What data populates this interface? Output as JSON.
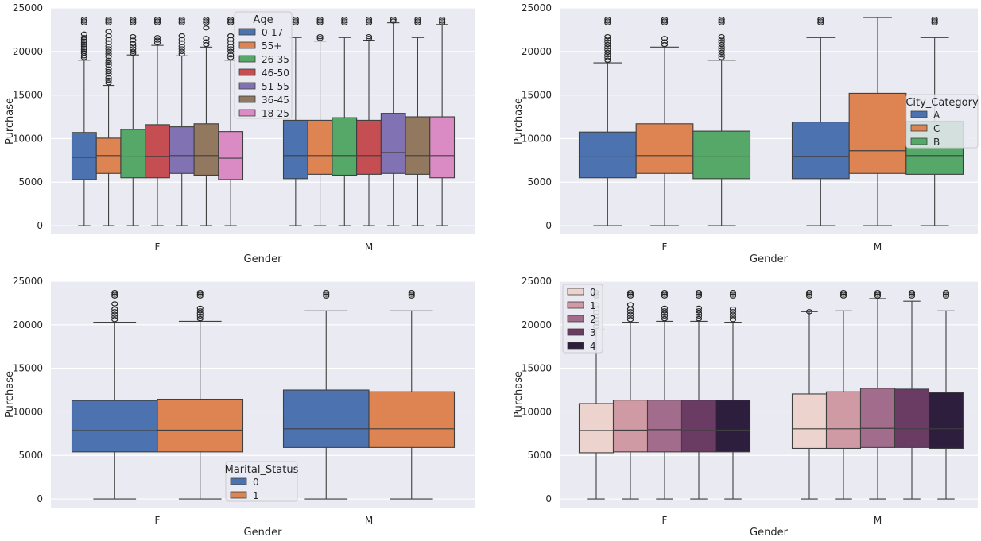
{
  "chart_data": [
    {
      "type": "boxplot",
      "xlabel": "Gender",
      "ylabel": "Purchase",
      "categories": [
        "F",
        "M"
      ],
      "ylim": [
        -1000,
        25000
      ],
      "yticks": [
        0,
        5000,
        10000,
        15000,
        20000,
        25000
      ],
      "legend": {
        "title": "Age",
        "position": "upper-center"
      },
      "series": [
        {
          "name": "0-17",
          "color": "#4c72b0",
          "boxes": [
            {
              "q1": 5300,
              "median": 7850,
              "q3": 10700,
              "whislo": 0,
              "whishi": 19000,
              "fliers": [
                19300,
                19500,
                19800,
                20000,
                20200,
                20400,
                20600,
                20800,
                21000,
                21200,
                21400,
                21600,
                22000,
                23300,
                23500,
                23700
              ]
            },
            {
              "q1": 5400,
              "median": 8050,
              "q3": 12100,
              "whislo": 0,
              "whishi": 21600,
              "fliers": [
                23300,
                23500,
                23700
              ]
            }
          ]
        },
        {
          "name": "55+",
          "color": "#dd8452",
          "boxes": [
            {
              "q1": 6000,
              "median": 8050,
              "q3": 10050,
              "whislo": 0,
              "whishi": 16100,
              "fliers": [
                16400,
                16700,
                17000,
                17400,
                17700,
                18000,
                18400,
                18700,
                19000,
                19400,
                19700,
                20000,
                20300,
                20600,
                21000,
                21400,
                21800,
                22300,
                23300,
                23500,
                23700
              ]
            },
            {
              "q1": 5900,
              "median": 8050,
              "q3": 12100,
              "whislo": 0,
              "whishi": 21200,
              "fliers": [
                21500,
                21700,
                23300,
                23500,
                23700
              ]
            }
          ]
        },
        {
          "name": "26-35",
          "color": "#55a868",
          "boxes": [
            {
              "q1": 5500,
              "median": 7900,
              "q3": 11050,
              "whislo": 0,
              "whishi": 19600,
              "fliers": [
                19800,
                20000,
                20300,
                20600,
                20900,
                21300,
                21700,
                23300,
                23500,
                23700
              ]
            },
            {
              "q1": 5800,
              "median": 8050,
              "q3": 12400,
              "whislo": 0,
              "whishi": 21600,
              "fliers": [
                23300,
                23500,
                23700
              ]
            }
          ]
        },
        {
          "name": "46-50",
          "color": "#c44e52",
          "boxes": [
            {
              "q1": 5500,
              "median": 7950,
              "q3": 11600,
              "whislo": 0,
              "whishi": 20700,
              "fliers": [
                21000,
                21300,
                21600,
                23300,
                23500,
                23700
              ]
            },
            {
              "q1": 5900,
              "median": 8050,
              "q3": 12100,
              "whislo": 0,
              "whishi": 21300,
              "fliers": [
                21500,
                21700,
                23300,
                23500,
                23700
              ]
            }
          ]
        },
        {
          "name": "51-55",
          "color": "#8172b3",
          "boxes": [
            {
              "q1": 6000,
              "median": 8050,
              "q3": 11350,
              "whislo": 0,
              "whishi": 19500,
              "fliers": [
                19700,
                20000,
                20300,
                20600,
                21000,
                21400,
                21800,
                23300,
                23500,
                23700
              ]
            },
            {
              "q1": 6000,
              "median": 8400,
              "q3": 12900,
              "whislo": 0,
              "whishi": 23300,
              "fliers": [
                23500,
                23700
              ]
            }
          ]
        },
        {
          "name": "36-45",
          "color": "#937860",
          "boxes": [
            {
              "q1": 5800,
              "median": 8050,
              "q3": 11700,
              "whislo": 0,
              "whishi": 20500,
              "fliers": [
                20800,
                21100,
                21500,
                22700,
                23300,
                23500,
                23700
              ]
            },
            {
              "q1": 5900,
              "median": 8050,
              "q3": 12500,
              "whislo": 0,
              "whishi": 21600,
              "fliers": [
                23300,
                23500,
                23700
              ]
            }
          ]
        },
        {
          "name": "18-25",
          "color": "#da8bc3",
          "boxes": [
            {
              "q1": 5300,
              "median": 7750,
              "q3": 10800,
              "whislo": 0,
              "whishi": 19000,
              "fliers": [
                19300,
                19600,
                20000,
                20300,
                20600,
                21000,
                21400,
                21800,
                23300,
                23500,
                23700
              ]
            },
            {
              "q1": 5500,
              "median": 8050,
              "q3": 12500,
              "whislo": 0,
              "whishi": 23100,
              "fliers": [
                23300,
                23500,
                23700
              ]
            }
          ]
        }
      ]
    },
    {
      "type": "boxplot",
      "xlabel": "Gender",
      "ylabel": "Purchase",
      "categories": [
        "F",
        "M"
      ],
      "ylim": [
        -1000,
        25000
      ],
      "yticks": [
        0,
        5000,
        10000,
        15000,
        20000,
        25000
      ],
      "legend": {
        "title": "City_Category",
        "position": "center-right"
      },
      "series": [
        {
          "name": "A",
          "color": "#4c72b0",
          "boxes": [
            {
              "q1": 5500,
              "median": 7900,
              "q3": 10750,
              "whislo": 0,
              "whishi": 18700,
              "fliers": [
                19000,
                19300,
                19600,
                19900,
                20200,
                20500,
                20800,
                21100,
                21400,
                21700,
                23300,
                23500,
                23700
              ]
            },
            {
              "q1": 5400,
              "median": 7950,
              "q3": 11900,
              "whislo": 0,
              "whishi": 21600,
              "fliers": [
                23300,
                23500,
                23700
              ]
            }
          ]
        },
        {
          "name": "C",
          "color": "#dd8452",
          "boxes": [
            {
              "q1": 6000,
              "median": 8050,
              "q3": 11700,
              "whislo": 0,
              "whishi": 20500,
              "fliers": [
                20800,
                21100,
                21500,
                23300,
                23500,
                23700
              ]
            },
            {
              "q1": 6000,
              "median": 8600,
              "q3": 15200,
              "whislo": 0,
              "whishi": 23900,
              "fliers": []
            }
          ]
        },
        {
          "name": "B",
          "color": "#55a868",
          "boxes": [
            {
              "q1": 5400,
              "median": 7900,
              "q3": 10850,
              "whislo": 0,
              "whishi": 19000,
              "fliers": [
                19300,
                19600,
                19900,
                20200,
                20500,
                20800,
                21100,
                21400,
                21700,
                23300,
                23500,
                23700
              ]
            },
            {
              "q1": 5900,
              "median": 8050,
              "q3": 12000,
              "whislo": 0,
              "whishi": 21600,
              "fliers": [
                23300,
                23500,
                23700
              ]
            }
          ]
        }
      ]
    },
    {
      "type": "boxplot",
      "xlabel": "Gender",
      "ylabel": "Purchase",
      "categories": [
        "F",
        "M"
      ],
      "ylim": [
        -1000,
        25000
      ],
      "yticks": [
        0,
        5000,
        10000,
        15000,
        20000,
        25000
      ],
      "legend": {
        "title": "Marital_Status",
        "position": "lower-center"
      },
      "series": [
        {
          "name": "0",
          "color": "#4c72b0",
          "boxes": [
            {
              "q1": 5400,
              "median": 7850,
              "q3": 11300,
              "whislo": 0,
              "whishi": 20300,
              "fliers": [
                20600,
                20900,
                21200,
                21500,
                21800,
                22400,
                23300,
                23500,
                23700
              ]
            },
            {
              "q1": 5900,
              "median": 8050,
              "q3": 12500,
              "whislo": 0,
              "whishi": 21600,
              "fliers": [
                23300,
                23500,
                23700
              ]
            }
          ]
        },
        {
          "name": "1",
          "color": "#dd8452",
          "boxes": [
            {
              "q1": 5400,
              "median": 7900,
              "q3": 11450,
              "whislo": 0,
              "whishi": 20400,
              "fliers": [
                20700,
                21000,
                21300,
                21600,
                21900,
                23300,
                23500,
                23700
              ]
            },
            {
              "q1": 5900,
              "median": 8050,
              "q3": 12300,
              "whislo": 0,
              "whishi": 21600,
              "fliers": [
                23300,
                23500,
                23700
              ]
            }
          ]
        }
      ]
    },
    {
      "type": "boxplot",
      "xlabel": "Gender",
      "ylabel": "Purchase",
      "categories": [
        "F",
        "M"
      ],
      "ylim": [
        -1000,
        25000
      ],
      "yticks": [
        0,
        5000,
        10000,
        15000,
        20000,
        25000
      ],
      "legend": {
        "title": "",
        "position": "upper-left"
      },
      "series": [
        {
          "name": "0",
          "color": "#ecd3cd",
          "boxes": [
            {
              "q1": 5300,
              "median": 7850,
              "q3": 10950,
              "whislo": 0,
              "whishi": 19400,
              "fliers": [
                19800,
                20200,
                20600,
                21000,
                21400,
                21800,
                22300,
                23300,
                23500,
                23700
              ]
            },
            {
              "q1": 5800,
              "median": 8050,
              "q3": 12050,
              "whislo": 0,
              "whishi": 21500,
              "fliers": [
                21500,
                23300,
                23500,
                23700
              ]
            }
          ]
        },
        {
          "name": "1",
          "color": "#d09aa5",
          "boxes": [
            {
              "q1": 5400,
              "median": 7900,
              "q3": 11350,
              "whislo": 0,
              "whishi": 20300,
              "fliers": [
                20600,
                20900,
                21200,
                21500,
                21800,
                22300,
                23300,
                23500,
                23700
              ]
            },
            {
              "q1": 5800,
              "median": 8050,
              "q3": 12300,
              "whislo": 0,
              "whishi": 21600,
              "fliers": [
                23300,
                23500,
                23700
              ]
            }
          ]
        },
        {
          "name": "2",
          "color": "#a26c8c",
          "boxes": [
            {
              "q1": 5400,
              "median": 7950,
              "q3": 11350,
              "whislo": 0,
              "whishi": 20400,
              "fliers": [
                20700,
                21000,
                21300,
                21600,
                21900,
                23300,
                23500,
                23700
              ]
            },
            {
              "q1": 5900,
              "median": 8100,
              "q3": 12700,
              "whislo": 0,
              "whishi": 23000,
              "fliers": [
                23300,
                23500,
                23700
              ]
            }
          ]
        },
        {
          "name": "3",
          "color": "#6a3c64",
          "boxes": [
            {
              "q1": 5400,
              "median": 7850,
              "q3": 11350,
              "whislo": 0,
              "whishi": 20400,
              "fliers": [
                20700,
                21000,
                21300,
                21600,
                21900,
                23300,
                23500,
                23700
              ]
            },
            {
              "q1": 5900,
              "median": 8050,
              "q3": 12600,
              "whislo": 0,
              "whishi": 22700,
              "fliers": [
                23300,
                23500,
                23700
              ]
            }
          ]
        },
        {
          "name": "4",
          "color": "#2d1e3e",
          "boxes": [
            {
              "q1": 5400,
              "median": 7900,
              "q3": 11350,
              "whislo": 0,
              "whishi": 20300,
              "fliers": [
                20600,
                20900,
                21200,
                21500,
                21800,
                23300,
                23500,
                23700
              ]
            },
            {
              "q1": 5800,
              "median": 8050,
              "q3": 12200,
              "whislo": 0,
              "whishi": 21600,
              "fliers": [
                23300,
                23500,
                23700
              ]
            }
          ]
        }
      ]
    }
  ]
}
